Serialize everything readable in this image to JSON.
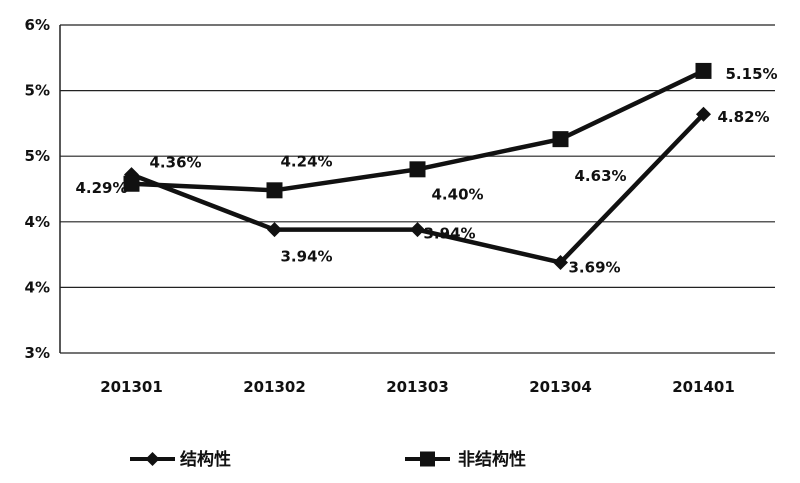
{
  "chart_data": {
    "type": "line",
    "categories": [
      "201301",
      "201302",
      "201303",
      "201304",
      "201401"
    ],
    "ylim": [
      3.0,
      5.5
    ],
    "y_ticks": [
      {
        "value": 3.0,
        "label": "3%"
      },
      {
        "value": 3.5,
        "label": "4%"
      },
      {
        "value": 4.0,
        "label": "4%"
      },
      {
        "value": 4.5,
        "label": "5%"
      },
      {
        "value": 5.0,
        "label": "5%"
      },
      {
        "value": 5.5,
        "label": "6%"
      }
    ],
    "grid": true,
    "legend_position": "bottom",
    "series": [
      {
        "name": "结构性",
        "marker": "diamond",
        "values": [
          4.36,
          3.94,
          3.94,
          3.69,
          4.82
        ],
        "labels": [
          "4.36%",
          "3.94%",
          "3.94%",
          "3.69%",
          "4.82%"
        ]
      },
      {
        "name": "非结构性",
        "marker": "square",
        "values": [
          4.29,
          4.24,
          4.4,
          4.63,
          5.15
        ],
        "labels": [
          "4.29%",
          "4.24%",
          "4.40%",
          "4.63%",
          "5.15%"
        ]
      }
    ],
    "colors": {
      "line": "#111111",
      "grid": "#222222",
      "background": "#ffffff"
    }
  }
}
